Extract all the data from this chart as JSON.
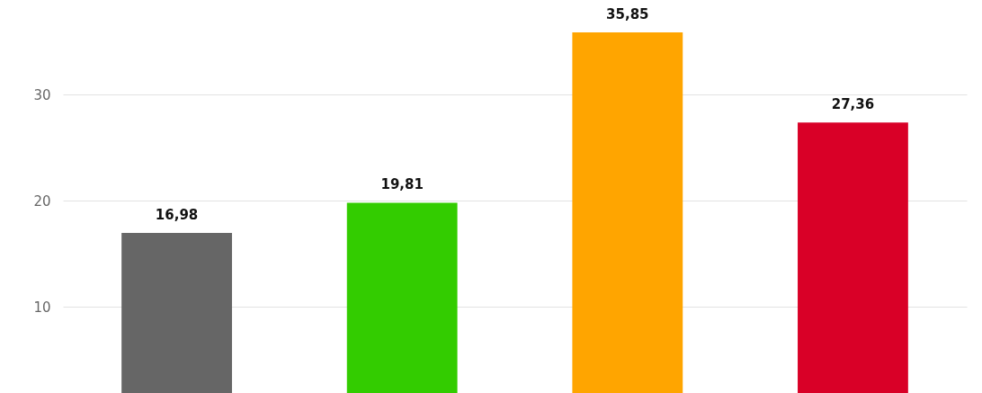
{
  "chart_data": {
    "type": "bar",
    "categories": [
      null,
      null,
      null,
      null
    ],
    "values": [
      16.98,
      19.81,
      35.85,
      27.36
    ],
    "colors": [
      "#666666",
      "#33cc00",
      "#ffa500",
      "#d90027"
    ],
    "value_labels": [
      "16,98",
      "19,81",
      "35,85",
      "27,36"
    ],
    "ylim": [
      1.9,
      38.9
    ],
    "yticks": [
      10,
      20,
      30
    ],
    "grid": "y",
    "tick_labels": "y"
  }
}
